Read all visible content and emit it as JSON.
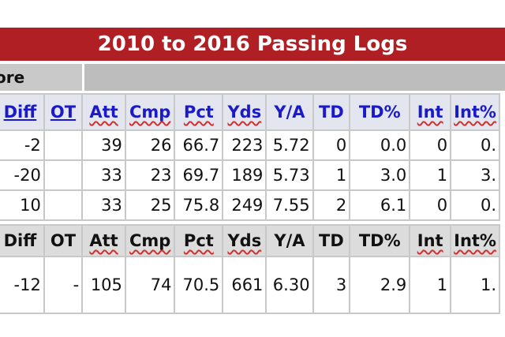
{
  "title": "2010 to 2016 Passing Logs",
  "group_label": "ore",
  "columns": [
    "Diff",
    "OT",
    "Att",
    "Cmp",
    "Pct",
    "Yds",
    "Y/A",
    "TD",
    "TD%",
    "Int",
    "Int%"
  ],
  "games": [
    [
      "-2",
      "",
      "39",
      "26",
      "66.7",
      "223",
      "5.72",
      "0",
      "0.0",
      "0",
      "0."
    ],
    [
      "-20",
      "",
      "33",
      "23",
      "69.7",
      "189",
      "5.73",
      "1",
      "3.0",
      "1",
      "3."
    ],
    [
      "10",
      "",
      "33",
      "25",
      "75.8",
      "249",
      "7.55",
      "2",
      "6.1",
      "0",
      "0."
    ]
  ],
  "totals": [
    "-12",
    "-",
    "105",
    "74",
    "70.5",
    "661",
    "6.30",
    "3",
    "2.9",
    "1",
    "1."
  ],
  "colors": {
    "banner": "#b01f24",
    "header_text": "#1a1ac8",
    "spell_underline": "#d03030"
  }
}
